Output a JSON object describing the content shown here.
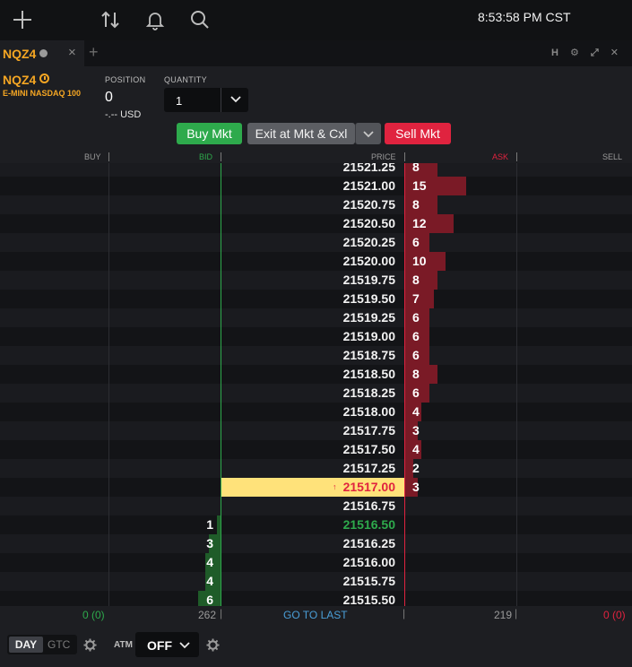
{
  "topbar": {
    "clock": "8:53:58 PM CST"
  },
  "tab": {
    "label": "NQZ4",
    "close": "×",
    "add": "+"
  },
  "window_controls": "H ⚙ ⤢ ✕",
  "instrument": {
    "symbol": "NQZ4",
    "name": "E-MINI NASDAQ 100"
  },
  "position": {
    "label": "POSITION",
    "value": "0",
    "pnl": "-.-- USD"
  },
  "quantity": {
    "label": "QUANTITY",
    "value": "1"
  },
  "buttons": {
    "buy": "Buy Mkt",
    "exit": "Exit at Mkt & Cxl",
    "sell": "Sell Mkt"
  },
  "columns": {
    "buy": "BUY",
    "bid": "BID",
    "price": "PRICE",
    "ask": "ASK",
    "sell": "SELL"
  },
  "ladder": {
    "last_price": "21517.00",
    "last_arrow": "↑",
    "rows": [
      {
        "price": "21521.25",
        "ask": "8"
      },
      {
        "price": "21521.00",
        "ask": "15"
      },
      {
        "price": "21520.75",
        "ask": "8"
      },
      {
        "price": "21520.50",
        "ask": "12"
      },
      {
        "price": "21520.25",
        "ask": "6"
      },
      {
        "price": "21520.00",
        "ask": "10"
      },
      {
        "price": "21519.75",
        "ask": "8"
      },
      {
        "price": "21519.50",
        "ask": "7"
      },
      {
        "price": "21519.25",
        "ask": "6"
      },
      {
        "price": "21519.00",
        "ask": "6"
      },
      {
        "price": "21518.75",
        "ask": "6"
      },
      {
        "price": "21518.50",
        "ask": "8"
      },
      {
        "price": "21518.25",
        "ask": "6"
      },
      {
        "price": "21518.00",
        "ask": "4"
      },
      {
        "price": "21517.75",
        "ask": "3"
      },
      {
        "price": "21517.50",
        "ask": "4"
      },
      {
        "price": "21517.25",
        "ask": "2"
      },
      {
        "price": "21517.00",
        "ask": "3",
        "last": true
      },
      {
        "price": "21516.75"
      },
      {
        "price": "21516.50",
        "bid": "1",
        "color": "green"
      },
      {
        "price": "21516.25",
        "bid": "3"
      },
      {
        "price": "21516.00",
        "bid": "4"
      },
      {
        "price": "21515.75",
        "bid": "4"
      },
      {
        "price": "21515.50",
        "bid": "6"
      }
    ]
  },
  "footer": {
    "buy_total": "0 (0)",
    "bid_total": "262",
    "go_to_last": "GO TO LAST",
    "ask_total": "219",
    "sell_total": "0 (0)",
    "tif_day": "DAY",
    "tif_gtc": "GTC",
    "atm_label": "ATM",
    "atm_value": "OFF"
  },
  "colors": {
    "bid": "#2eaa4c",
    "ask": "#e0233f",
    "accent": "#f5a623",
    "last_bg": "#ffe27a"
  }
}
